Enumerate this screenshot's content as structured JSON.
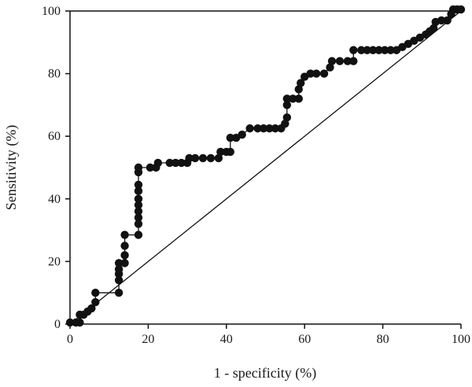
{
  "chart_data": {
    "type": "line",
    "title": "",
    "xlabel": "1 - specificity (%)",
    "ylabel": "Sensitivity (%)",
    "xlim": [
      0,
      100
    ],
    "ylim": [
      0,
      100
    ],
    "xticks": [
      0,
      20,
      40,
      60,
      80,
      100
    ],
    "yticks": [
      0,
      20,
      40,
      60,
      80,
      100
    ],
    "grid": false,
    "legend": "none",
    "series": [
      {
        "style": "step-line-with-markers",
        "color": "#111111",
        "points": [
          [
            0,
            0.5
          ],
          [
            1.5,
            0.5
          ],
          [
            2.5,
            0.5
          ],
          [
            2.5,
            3
          ],
          [
            3.5,
            3
          ],
          [
            4.5,
            4
          ],
          [
            5.5,
            5
          ],
          [
            6.5,
            7
          ],
          [
            6.5,
            10
          ],
          [
            12.5,
            10
          ],
          [
            12.5,
            14
          ],
          [
            12.5,
            16
          ],
          [
            12.5,
            17.5
          ],
          [
            12.5,
            19.5
          ],
          [
            14,
            19.5
          ],
          [
            14,
            22
          ],
          [
            14,
            25
          ],
          [
            14,
            28.5
          ],
          [
            17.5,
            28.5
          ],
          [
            17.5,
            32
          ],
          [
            17.5,
            34
          ],
          [
            17.5,
            36
          ],
          [
            17.5,
            38
          ],
          [
            17.5,
            40
          ],
          [
            17.5,
            42.5
          ],
          [
            17.5,
            44.5
          ],
          [
            17.5,
            48.5
          ],
          [
            17.5,
            50
          ],
          [
            20.5,
            50
          ],
          [
            22,
            50
          ],
          [
            22.5,
            51.5
          ],
          [
            25.5,
            51.5
          ],
          [
            27,
            51.5
          ],
          [
            28.5,
            51.5
          ],
          [
            30,
            51.5
          ],
          [
            30.5,
            53
          ],
          [
            32,
            53
          ],
          [
            34,
            53
          ],
          [
            36,
            53
          ],
          [
            38,
            53
          ],
          [
            38.5,
            55
          ],
          [
            40,
            55
          ],
          [
            41,
            55
          ],
          [
            41,
            59.5
          ],
          [
            42.5,
            59.5
          ],
          [
            44,
            60.5
          ],
          [
            46,
            62.5
          ],
          [
            48,
            62.5
          ],
          [
            49.5,
            62.5
          ],
          [
            51,
            62.5
          ],
          [
            52.5,
            62.5
          ],
          [
            54,
            62.5
          ],
          [
            55,
            64
          ],
          [
            55.5,
            66
          ],
          [
            55.5,
            70
          ],
          [
            55.5,
            72
          ],
          [
            57,
            72
          ],
          [
            58.5,
            72
          ],
          [
            58.5,
            75
          ],
          [
            59,
            77
          ],
          [
            60,
            79
          ],
          [
            61.5,
            80
          ],
          [
            63,
            80
          ],
          [
            65,
            80
          ],
          [
            66.5,
            82
          ],
          [
            67,
            84
          ],
          [
            69,
            84
          ],
          [
            71,
            84
          ],
          [
            72.5,
            84
          ],
          [
            72.5,
            87.5
          ],
          [
            74.5,
            87.5
          ],
          [
            76,
            87.5
          ],
          [
            77.5,
            87.5
          ],
          [
            79,
            87.5
          ],
          [
            80.5,
            87.5
          ],
          [
            82,
            87.5
          ],
          [
            83.5,
            87.5
          ],
          [
            85,
            88.5
          ],
          [
            86.5,
            89.5
          ],
          [
            88,
            90.5
          ],
          [
            89.5,
            91.5
          ],
          [
            91,
            92.5
          ],
          [
            92,
            93.5
          ],
          [
            93,
            94.5
          ],
          [
            93.5,
            96.5
          ],
          [
            95,
            97
          ],
          [
            96.5,
            97
          ],
          [
            97.5,
            99
          ],
          [
            98,
            100.5
          ],
          [
            99,
            100.5
          ],
          [
            100,
            100.5
          ]
        ]
      },
      {
        "style": "reference-diagonal",
        "color": "#111111",
        "points": [
          [
            0,
            0
          ],
          [
            100,
            100
          ]
        ]
      }
    ]
  }
}
